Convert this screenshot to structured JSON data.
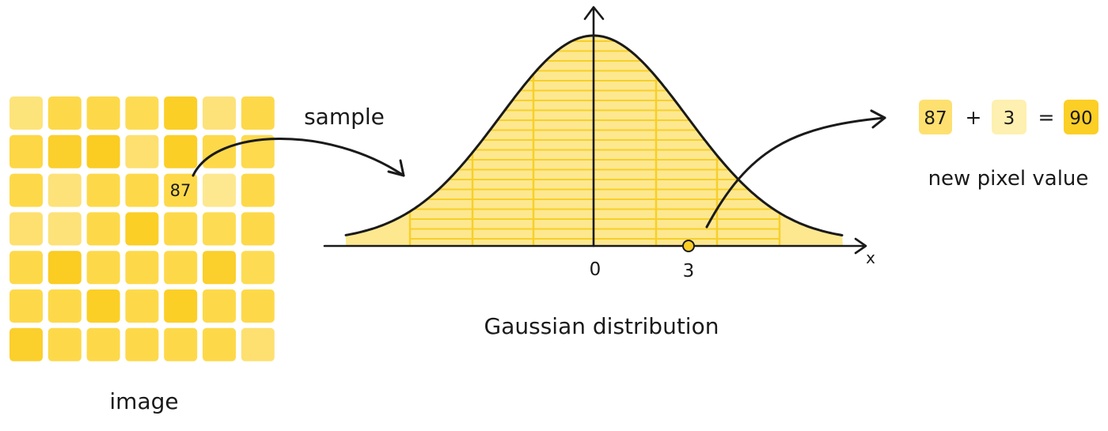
{
  "image_grid": {
    "label": "image",
    "highlight_value": "87",
    "colors": [
      [
        "#fde47a",
        "#fdd94a",
        "#fdd94a",
        "#fddc54",
        "#fbcf26",
        "#fde27a",
        "#fdd94a"
      ],
      [
        "#fdd745",
        "#fbcf2c",
        "#fbcc22",
        "#fde070",
        "#fbcf26",
        "#fdd94a",
        "#fdda4e"
      ],
      [
        "#fdd94a",
        "#fde27a",
        "#fdd94a",
        "#fdd94a",
        "#fdd94a",
        "#fde890",
        "#fdd94a"
      ],
      [
        "#fde070",
        "#fde27a",
        "#fdd94a",
        "#fbcf26",
        "#fdd94a",
        "#fddc54",
        "#fdd94a"
      ],
      [
        "#fdd94a",
        "#fbcc22",
        "#fdd94a",
        "#fdd94a",
        "#fdd94a",
        "#fbcf2c",
        "#fddc54"
      ],
      [
        "#fdd94a",
        "#fdd94a",
        "#fbcf26",
        "#fdd94a",
        "#fbcf26",
        "#fdd94a",
        "#fdd94a"
      ],
      [
        "#fbcf2c",
        "#fdd94a",
        "#fdd94a",
        "#fdd94a",
        "#fdd94a",
        "#fdd94a",
        "#fde070"
      ]
    ]
  },
  "arrows": {
    "sample_label": "sample"
  },
  "distribution": {
    "title": "Gaussian distribution",
    "x_axis_label": "x",
    "origin_label": "0",
    "sample_label": "3",
    "sample_value": 3,
    "fill_color": "#fde890",
    "hatch_color": "#f7cf2a",
    "marker_color": "#fbcf26"
  },
  "equation": {
    "pixel": "87",
    "plus": "+",
    "noise": "3",
    "equals": "=",
    "result": "90",
    "caption": "new pixel value",
    "pixel_color": "#fde070",
    "noise_color": "#fdf0b0",
    "result_color": "#fbcf26"
  }
}
